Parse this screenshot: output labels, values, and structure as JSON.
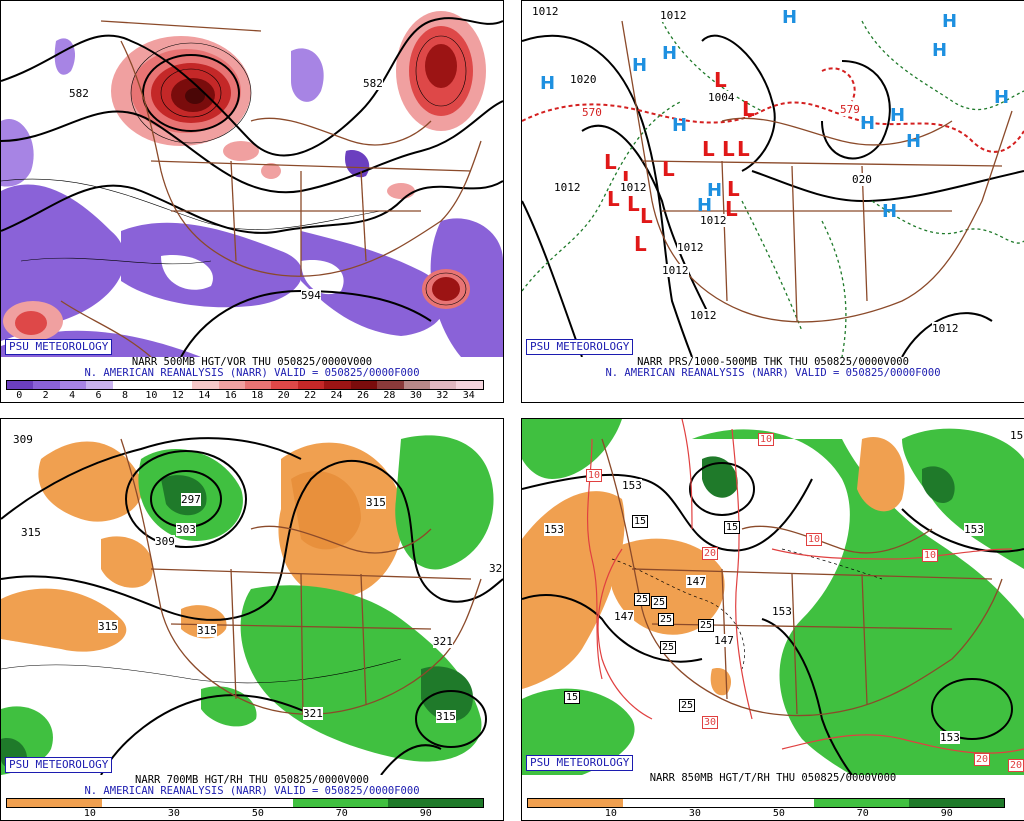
{
  "credit": "PSU METEOROLOGY",
  "panels": {
    "top_left": {
      "title1": "NARR 500MB HGT/VOR THU 050825/0000V000",
      "title2": "N. AMERICAN REANALYSIS (NARR) VALID = 050825/0000F000",
      "colorbar_labels": [
        "0",
        "2",
        "4",
        "6",
        "8",
        "10",
        "12",
        "14",
        "16",
        "18",
        "20",
        "22",
        "24",
        "26",
        "28",
        "30",
        "32",
        "34"
      ],
      "colorbar_colors": [
        "#6b3fbf",
        "#8a62d8",
        "#a784e4",
        "#c9b3ee",
        "#ffffff",
        "#ffffff",
        "#ffffff",
        "#f6c8c8",
        "#f0a0a0",
        "#e87474",
        "#de4848",
        "#c42828",
        "#9c1414",
        "#7a0c0c",
        "#8a3a3a",
        "#b88888",
        "#e0b8c0",
        "#f4d4dc"
      ],
      "contour_labels": [
        "582",
        "582",
        "594"
      ]
    },
    "top_right": {
      "title1": "NARR PRS/1000-500MB THK THU 050825/0000V000",
      "title2": "N. AMERICAN REANALYSIS (NARR) VALID = 050825/0000F000",
      "isobar_labels": [
        "1012",
        "1012",
        "1020",
        "1004",
        "1012",
        "1012",
        "1012",
        "1012",
        "1012",
        "1012",
        "020",
        "1012"
      ],
      "thickness_labels": [
        "570",
        "579"
      ],
      "high_marker": "H",
      "low_marker": "L"
    },
    "bottom_left": {
      "title1": "NARR 700MB HGT/RH THU 050825/0000V000",
      "title2": "N. AMERICAN REANALYSIS (NARR) VALID = 050825/0000F000",
      "colorbar_labels": [
        "10",
        "30",
        "50",
        "70",
        "90"
      ],
      "colorbar_colors": [
        "#f0a050",
        "#ffffff",
        "#ffffff",
        "#40c040",
        "#1f7a2a"
      ],
      "contour_labels": [
        "309",
        "315",
        "297",
        "303",
        "309",
        "315",
        "315",
        "315",
        "321",
        "315",
        "321",
        "32"
      ]
    },
    "bottom_right": {
      "title1": "NARR 850MB HGT/T/RH THU 050825/0000V000",
      "colorbar_labels": [
        "10",
        "30",
        "50",
        "70",
        "90"
      ],
      "colorbar_colors": [
        "#f0a050",
        "#ffffff",
        "#ffffff",
        "#40c040",
        "#1f7a2a"
      ],
      "contour_labels": [
        "153",
        "153",
        "147",
        "147",
        "147",
        "153",
        "153",
        "153",
        "15"
      ],
      "temp_boxes": [
        "15",
        "15",
        "25",
        "25",
        "25",
        "25",
        "25",
        "25",
        "15",
        "30",
        "20",
        "10",
        "10",
        "10",
        "10",
        "20",
        "20"
      ]
    }
  }
}
